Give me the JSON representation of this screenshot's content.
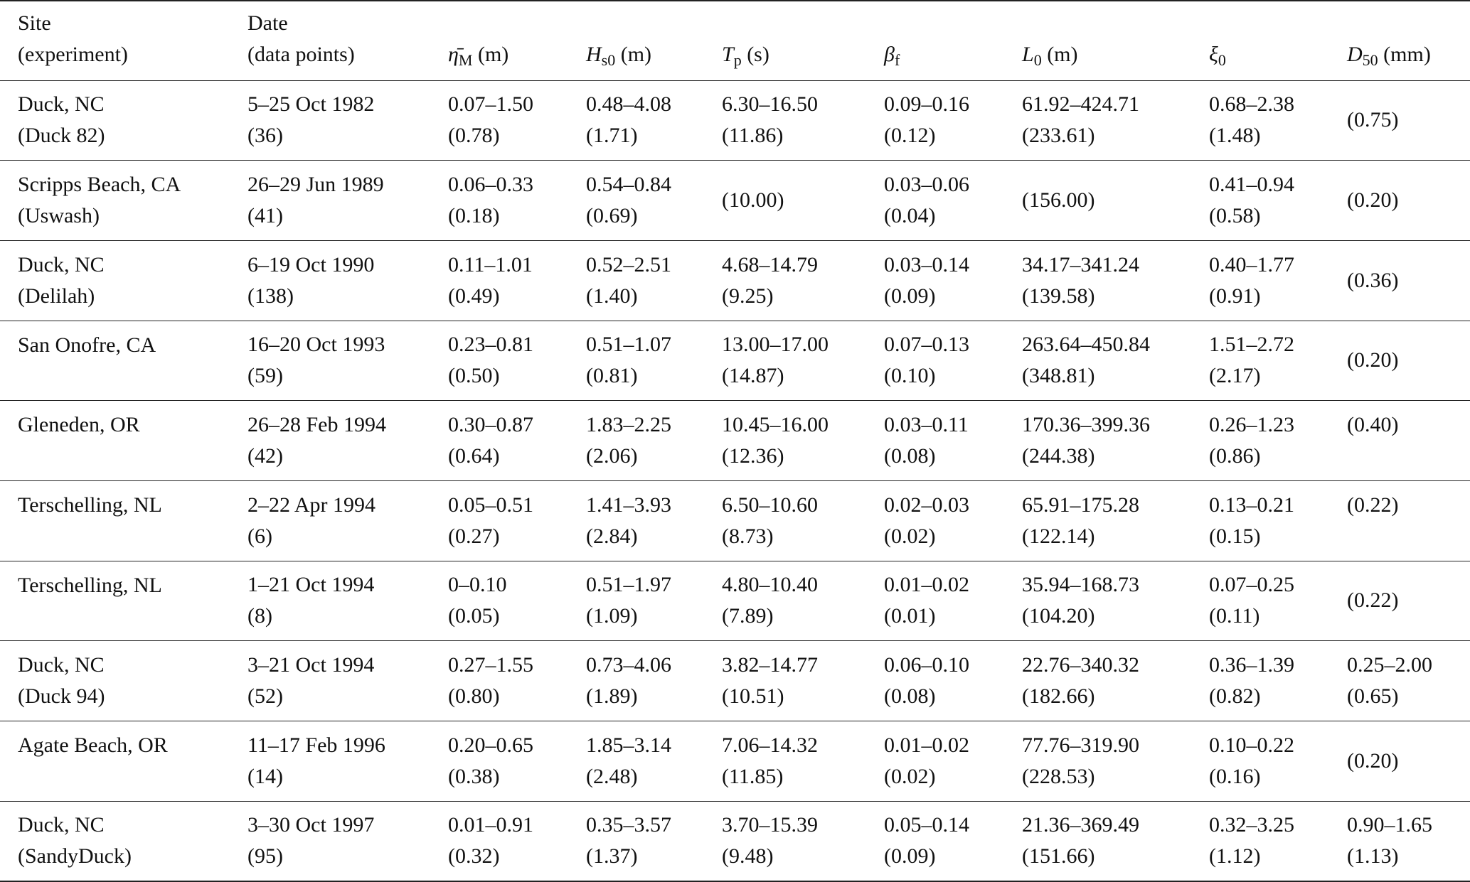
{
  "table": {
    "header": [
      {
        "lines": [
          "Site",
          "(experiment)"
        ]
      },
      {
        "lines": [
          "Date",
          "(data points)"
        ]
      },
      {
        "symbol": "η̄",
        "sub": "M",
        "unit": "(m)"
      },
      {
        "symbol": "H",
        "sub": "s0",
        "unit": "(m)"
      },
      {
        "symbol": "T",
        "sub": "p",
        "unit": "(s)"
      },
      {
        "symbol": "β",
        "sub": "f"
      },
      {
        "symbol": "L",
        "sub": "0",
        "unit": "(m)"
      },
      {
        "symbol": "ξ",
        "sub": "0"
      },
      {
        "symbol": "D",
        "sub": "50",
        "unit": "(mm)"
      }
    ],
    "rows": [
      [
        [
          "Duck, NC",
          "(Duck 82)"
        ],
        [
          "5–25 Oct 1982",
          "(36)"
        ],
        [
          "0.07–1.50",
          "(0.78)"
        ],
        [
          "0.48–4.08",
          "(1.71)"
        ],
        [
          "6.30–16.50",
          "(11.86)"
        ],
        [
          "0.09–0.16",
          "(0.12)"
        ],
        [
          "61.92–424.71",
          "(233.61)"
        ],
        [
          "0.68–2.38",
          "(1.48)"
        ],
        [
          "(0.75)"
        ]
      ],
      [
        [
          "Scripps Beach, CA",
          "(Uswash)"
        ],
        [
          "26–29 Jun 1989",
          "(41)"
        ],
        [
          "0.06–0.33",
          "(0.18)"
        ],
        [
          "0.54–0.84",
          "(0.69)"
        ],
        [
          "(10.00)"
        ],
        [
          "0.03–0.06",
          "(0.04)"
        ],
        [
          "(156.00)"
        ],
        [
          "0.41–0.94",
          "(0.58)"
        ],
        [
          "(0.20)"
        ]
      ],
      [
        [
          "Duck, NC",
          "(Delilah)"
        ],
        [
          "6–19 Oct 1990",
          "(138)"
        ],
        [
          "0.11–1.01",
          "(0.49)"
        ],
        [
          "0.52–2.51",
          "(1.40)"
        ],
        [
          "4.68–14.79",
          "(9.25)"
        ],
        [
          "0.03–0.14",
          "(0.09)"
        ],
        [
          "34.17–341.24",
          "(139.58)"
        ],
        [
          "0.40–1.77",
          "(0.91)"
        ],
        [
          "(0.36)"
        ]
      ],
      [
        [
          "San Onofre, CA"
        ],
        [
          "16–20 Oct 1993",
          "(59)"
        ],
        [
          "0.23–0.81",
          "(0.50)"
        ],
        [
          "0.51–1.07",
          "(0.81)"
        ],
        [
          "13.00–17.00",
          "(14.87)"
        ],
        [
          "0.07–0.13",
          "(0.10)"
        ],
        [
          "263.64–450.84",
          "(348.81)"
        ],
        [
          "1.51–2.72",
          "(2.17)"
        ],
        [
          "(0.20)"
        ]
      ],
      [
        [
          "Gleneden, OR"
        ],
        [
          "26–28 Feb 1994",
          "(42)"
        ],
        [
          "0.30–0.87",
          "(0.64)"
        ],
        [
          "1.83–2.25",
          "(2.06)"
        ],
        [
          "10.45–16.00",
          "(12.36)"
        ],
        [
          "0.03–0.11",
          "(0.08)"
        ],
        [
          "170.36–399.36",
          "(244.38)"
        ],
        [
          "0.26–1.23",
          "(0.86)"
        ],
        [
          "(0.40)"
        ]
      ],
      [
        [
          "Terschelling, NL"
        ],
        [
          "2–22 Apr 1994",
          "(6)"
        ],
        [
          "0.05–0.51",
          "(0.27)"
        ],
        [
          "1.41–3.93",
          "(2.84)"
        ],
        [
          "6.50–10.60",
          "(8.73)"
        ],
        [
          "0.02–0.03",
          "(0.02)"
        ],
        [
          "65.91–175.28",
          "(122.14)"
        ],
        [
          "0.13–0.21",
          "(0.15)"
        ],
        [
          "(0.22)"
        ]
      ],
      [
        [
          "Terschelling, NL"
        ],
        [
          "1–21 Oct 1994",
          "(8)"
        ],
        [
          "0–0.10",
          "(0.05)"
        ],
        [
          "0.51–1.97",
          "(1.09)"
        ],
        [
          "4.80–10.40",
          "(7.89)"
        ],
        [
          "0.01–0.02",
          "(0.01)"
        ],
        [
          "35.94–168.73",
          "(104.20)"
        ],
        [
          "0.07–0.25",
          "(0.11)"
        ],
        [
          "(0.22)"
        ]
      ],
      [
        [
          "Duck, NC",
          "(Duck 94)"
        ],
        [
          "3–21 Oct 1994",
          "(52)"
        ],
        [
          "0.27–1.55",
          "(0.80)"
        ],
        [
          "0.73–4.06",
          "(1.89)"
        ],
        [
          "3.82–14.77",
          "(10.51)"
        ],
        [
          "0.06–0.10",
          "(0.08)"
        ],
        [
          "22.76–340.32",
          "(182.66)"
        ],
        [
          "0.36–1.39",
          "(0.82)"
        ],
        [
          "0.25–2.00",
          "(0.65)"
        ]
      ],
      [
        [
          "Agate Beach, OR"
        ],
        [
          "11–17 Feb 1996",
          "(14)"
        ],
        [
          "0.20–0.65",
          "(0.38)"
        ],
        [
          "1.85–3.14",
          "(2.48)"
        ],
        [
          "7.06–14.32",
          "(11.85)"
        ],
        [
          "0.01–0.02",
          "(0.02)"
        ],
        [
          "77.76–319.90",
          "(228.53)"
        ],
        [
          "0.10–0.22",
          "(0.16)"
        ],
        [
          "(0.20)"
        ]
      ],
      [
        [
          "Duck, NC",
          "(SandyDuck)"
        ],
        [
          "3–30 Oct 1997",
          "(95)"
        ],
        [
          "0.01–0.91",
          "(0.32)"
        ],
        [
          "0.35–3.57",
          "(1.37)"
        ],
        [
          "3.70–15.39",
          "(9.48)"
        ],
        [
          "0.05–0.14",
          "(0.09)"
        ],
        [
          "21.36–369.49",
          "(151.66)"
        ],
        [
          "0.32–3.25",
          "(1.12)"
        ],
        [
          "0.90–1.65",
          "(1.13)"
        ]
      ]
    ]
  }
}
